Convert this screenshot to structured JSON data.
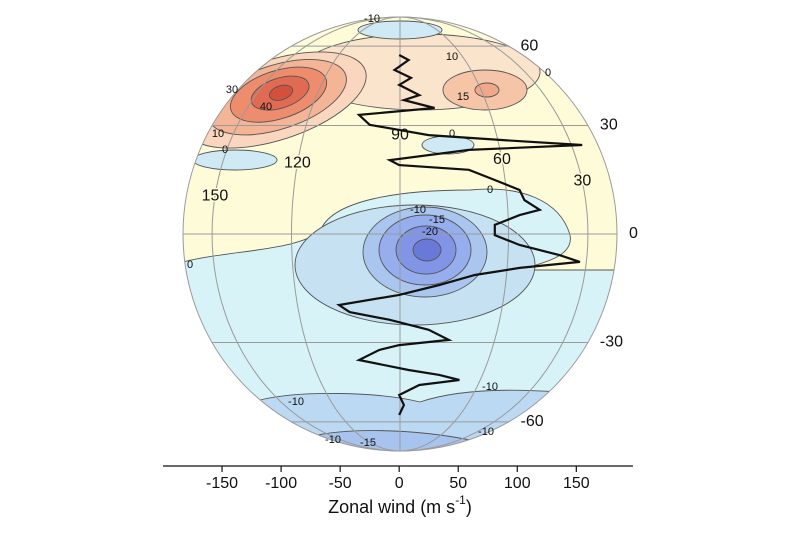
{
  "chart_data": {
    "type": "line",
    "xlabel": [
      "Zonal wind (m s",
      "-1",
      ")"
    ],
    "xlim": [
      -200,
      198
    ],
    "xticks": [
      -150,
      -100,
      -50,
      0,
      50,
      100,
      150
    ],
    "lat_labels": [
      60,
      30,
      0,
      -30,
      -60
    ],
    "lon_labels": [
      90,
      60,
      30,
      120,
      150
    ],
    "contour_labels": [
      -10,
      10,
      15,
      0,
      40,
      30,
      10,
      0,
      0,
      0,
      -10,
      -15,
      -20,
      0,
      -10,
      -10,
      -10,
      -10,
      -15
    ],
    "line_color": "#111111",
    "lat": [
      55.6,
      53.3,
      49.1,
      46.0,
      43.4,
      39.8,
      38.1,
      35.5,
      33.3,
      30.2,
      27.1,
      25.7,
      24.2,
      22.8,
      19.9,
      18.5,
      17.2,
      14.4,
      11.7,
      9.0,
      6.4,
      5.0,
      2.4,
      -0.3,
      -2.9,
      -5.6,
      -7.4,
      -9.0,
      -10.9,
      -13.6,
      -16.3,
      -19.1,
      -21.1,
      -23.3,
      -26.2,
      -29.2,
      -30.8,
      -32.3,
      -35.5,
      -38.8,
      -40.5,
      -42.3,
      -44.1,
      -47.9,
      -52.0,
      -56.5
    ],
    "values": [
      0,
      8,
      -4,
      10,
      0,
      17,
      4,
      30,
      -34,
      -25,
      25,
      85,
      155,
      59,
      -8,
      0,
      59,
      81,
      102,
      106,
      119,
      102,
      81,
      81,
      102,
      136,
      153,
      102,
      64,
      34,
      0,
      -51,
      -42,
      -8,
      25,
      42,
      0,
      -17,
      -34,
      8,
      34,
      51,
      17,
      0,
      4,
      0
    ]
  }
}
